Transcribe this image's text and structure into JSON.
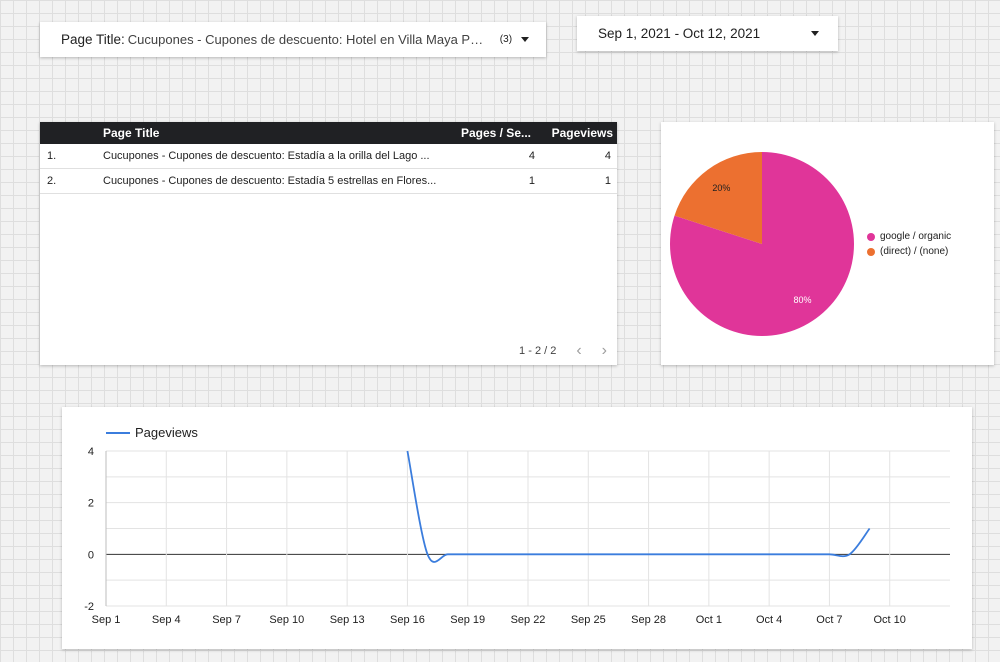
{
  "filter": {
    "label": "Page Title:",
    "value": "Cucupones - Cupones de descuento: Hotel en Villa Maya Pet...",
    "count": "(3)"
  },
  "date_range": "Sep 1, 2021 - Oct 12, 2021",
  "table": {
    "headers": [
      "Page Title",
      "Pages / Se...",
      "Pageviews"
    ],
    "rows": [
      {
        "idx": "1.",
        "title": "Cucupones - Cupones de descuento: Estadía a la orilla del Lago ...",
        "pages_per_session": "4",
        "pageviews": "4"
      },
      {
        "idx": "2.",
        "title": "Cucupones - Cupones de descuento: Estadía 5 estrellas en Flores...",
        "pages_per_session": "1",
        "pageviews": "1"
      }
    ],
    "pagination": "1 - 2 / 2"
  },
  "colors": {
    "google_organic": "#e03599",
    "direct": "#ec7030",
    "line": "#3b7ddd"
  },
  "chart_data": [
    {
      "type": "pie",
      "slices": [
        {
          "name": "google / organic",
          "value": 80,
          "label": "80%"
        },
        {
          "name": "(direct) / (none)",
          "value": 20,
          "label": "20%"
        }
      ],
      "legend": "right"
    },
    {
      "type": "line",
      "series": [
        {
          "name": "Pageviews",
          "values": [
            0,
            0,
            0,
            0,
            0,
            0,
            0,
            0,
            0,
            0,
            0,
            0,
            0,
            0,
            0,
            4,
            0,
            0,
            0,
            0,
            0,
            0,
            0,
            0,
            0,
            0,
            0,
            0,
            0,
            0,
            0,
            0,
            0,
            0,
            0,
            0,
            0,
            0,
            1
          ]
        }
      ],
      "x_tick_labels": [
        "Sep 1",
        "Sep 4",
        "Sep 7",
        "Sep 10",
        "Sep 13",
        "Sep 16",
        "Sep 19",
        "Sep 22",
        "Sep 25",
        "Sep 28",
        "Oct 1",
        "Oct 4",
        "Oct 7",
        "Oct 10"
      ],
      "y_ticks": [
        4,
        2,
        0,
        -2
      ],
      "ylim": [
        -2,
        4
      ],
      "legend": "top-left"
    }
  ]
}
